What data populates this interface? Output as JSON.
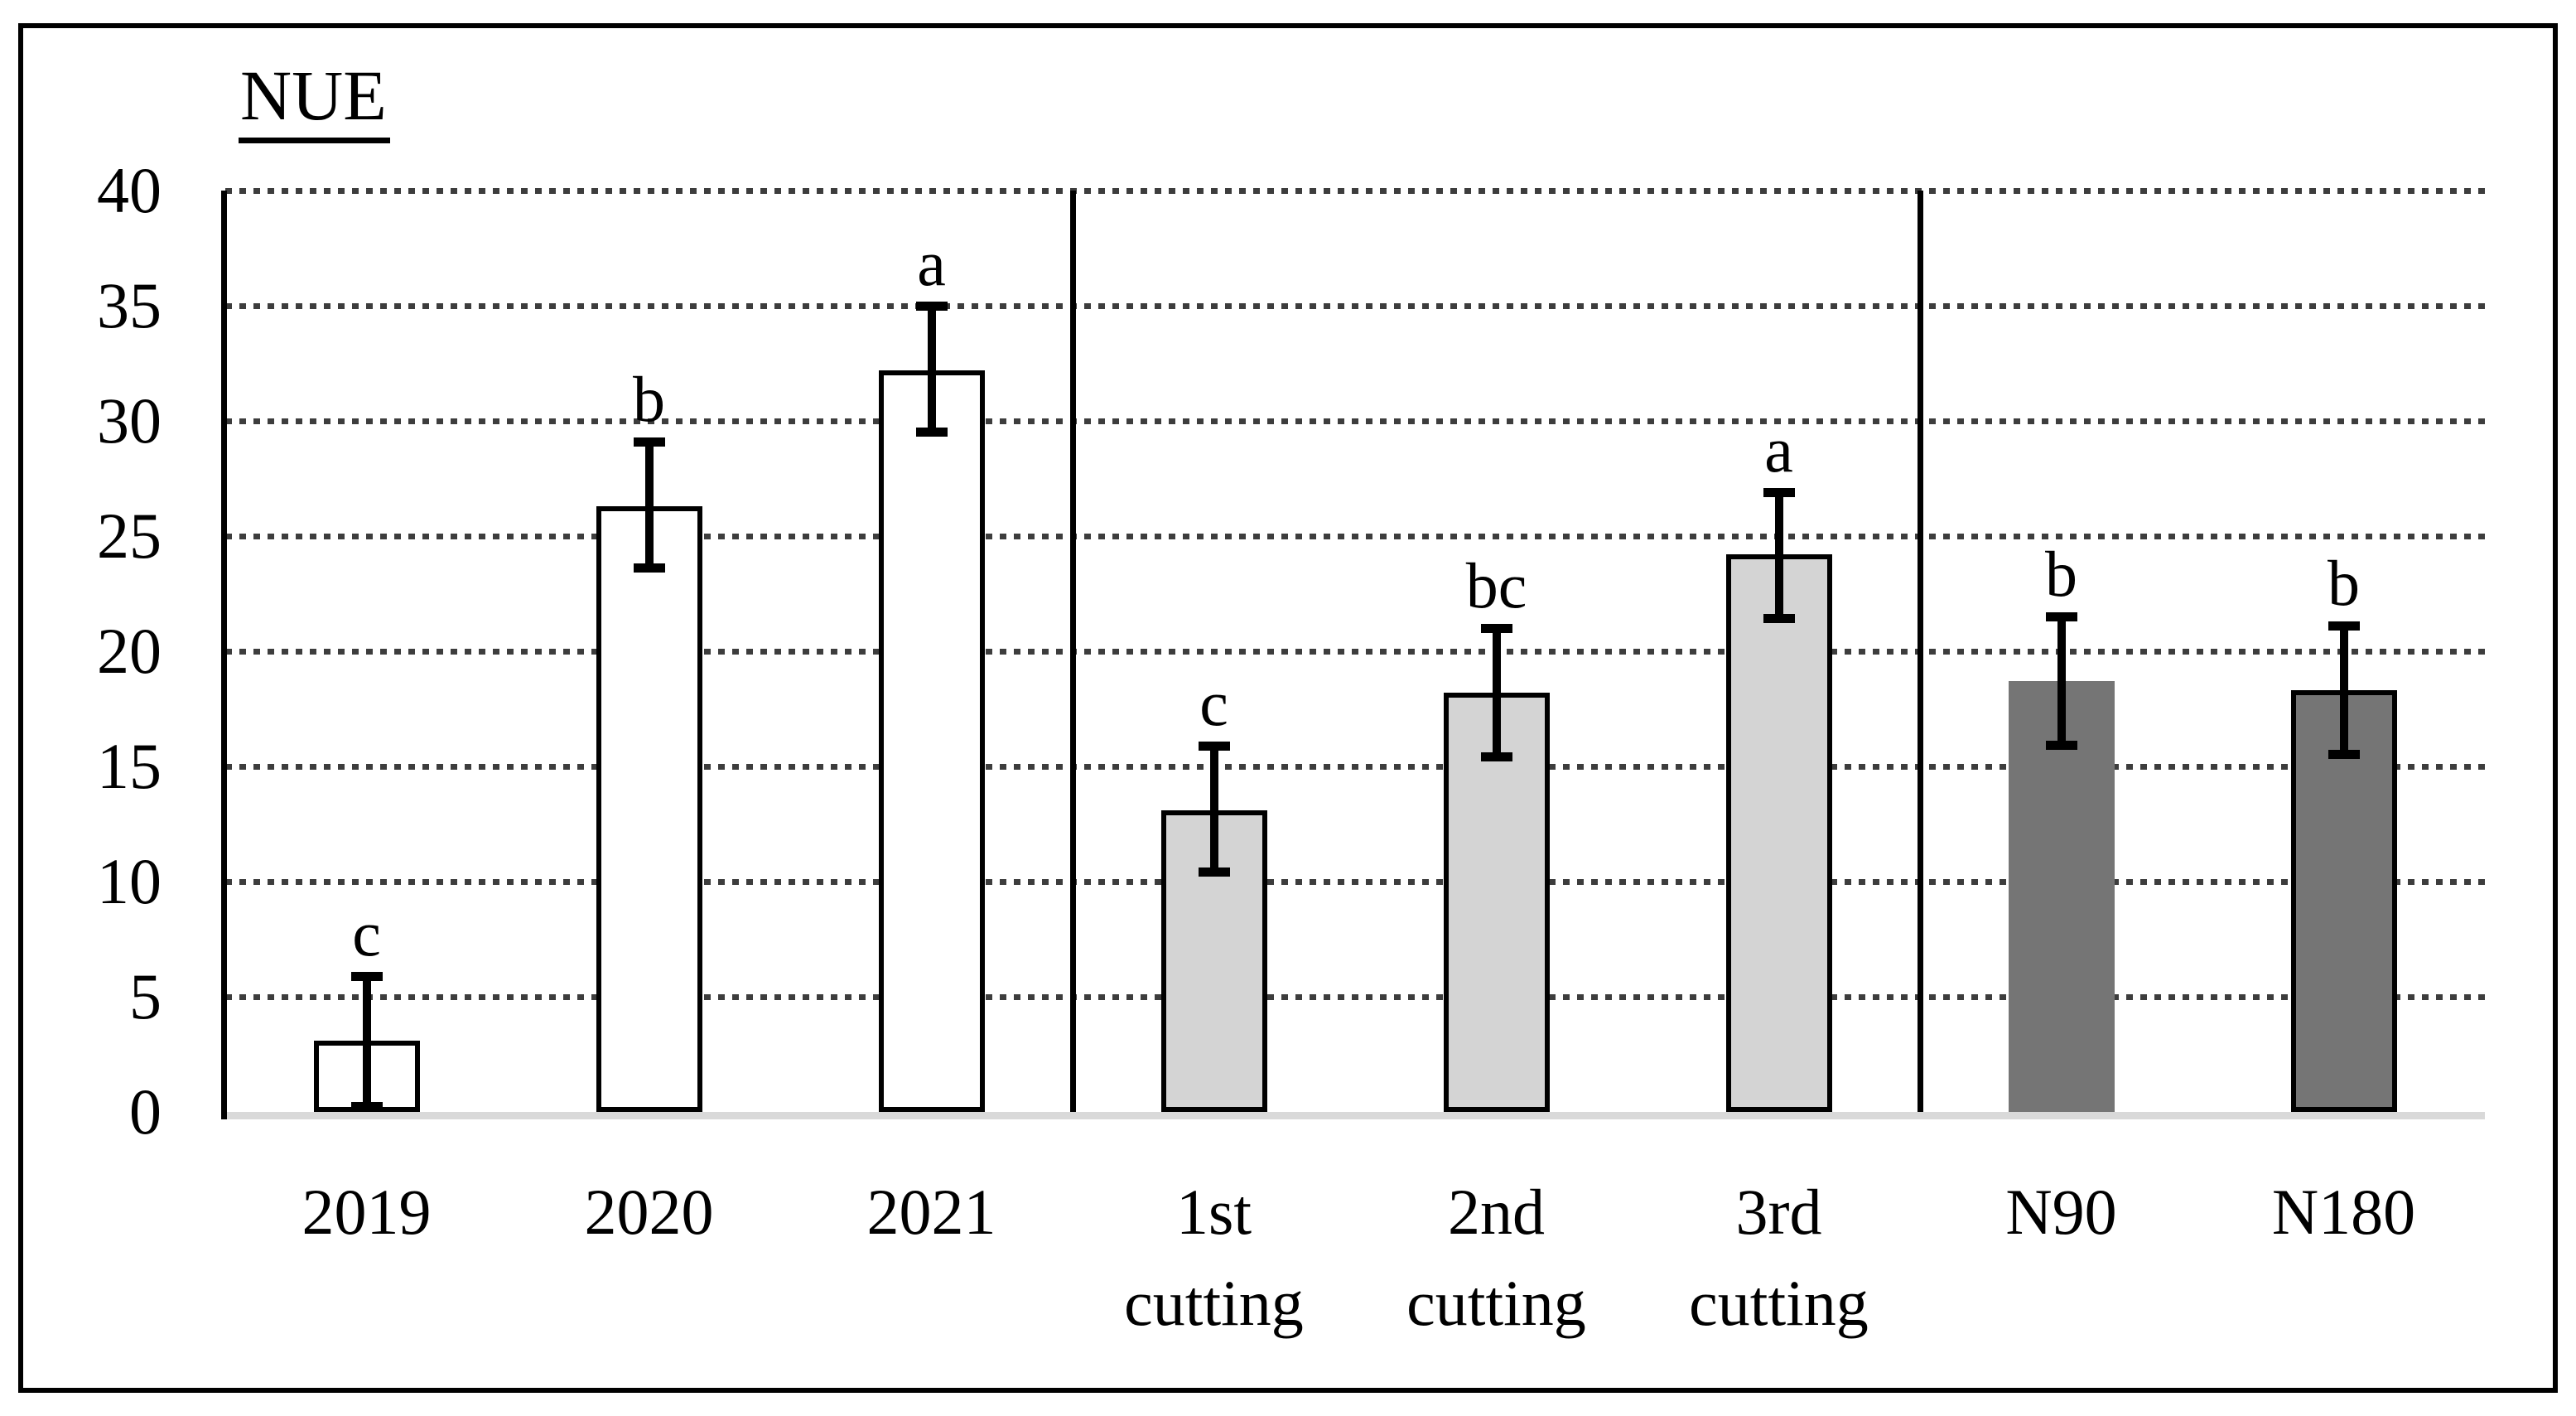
{
  "title": "NUE",
  "chart_data": {
    "type": "bar",
    "title": "NUE",
    "xlabel": "",
    "ylabel": "",
    "ylim": [
      0,
      40
    ],
    "yticks": [
      0,
      5,
      10,
      15,
      20,
      25,
      30,
      35,
      40
    ],
    "grid": "horizontal dotted gridlines at every 5 units",
    "legend_position": "none",
    "error_bars": true,
    "categories": [
      "2019",
      "2020",
      "2021",
      "1st cutting",
      "2nd cutting",
      "3rd cutting",
      "N90",
      "N180"
    ],
    "values": [
      3.1,
      26.3,
      32.2,
      13.1,
      18.2,
      24.2,
      18.7,
      18.3
    ],
    "bars": [
      {
        "category": "2019",
        "label_lines": [
          "2019"
        ],
        "value": 3.1,
        "err_low": 0.2,
        "err_high": 5.9,
        "sig_letter": "c",
        "fill": "#ffffff",
        "outlined": true
      },
      {
        "category": "2020",
        "label_lines": [
          "2020"
        ],
        "value": 26.3,
        "err_low": 23.6,
        "err_high": 29.1,
        "sig_letter": "b",
        "fill": "#ffffff",
        "outlined": true
      },
      {
        "category": "2021",
        "label_lines": [
          "2021"
        ],
        "value": 32.2,
        "err_low": 29.5,
        "err_high": 35.0,
        "sig_letter": "a",
        "fill": "#ffffff",
        "outlined": true
      },
      {
        "category": "1st cutting",
        "label_lines": [
          "1st",
          "cutting"
        ],
        "value": 13.1,
        "err_low": 10.4,
        "err_high": 15.9,
        "sig_letter": "c",
        "fill": "#d4d4d4",
        "outlined": true
      },
      {
        "category": "2nd cutting",
        "label_lines": [
          "2nd",
          "cutting"
        ],
        "value": 18.2,
        "err_low": 15.4,
        "err_high": 21.0,
        "sig_letter": "bc",
        "fill": "#d4d4d4",
        "outlined": true
      },
      {
        "category": "3rd cutting",
        "label_lines": [
          "3rd",
          "cutting"
        ],
        "value": 24.2,
        "err_low": 21.4,
        "err_high": 26.9,
        "sig_letter": "a",
        "fill": "#d4d4d4",
        "outlined": true
      },
      {
        "category": "N90",
        "label_lines": [
          "N90"
        ],
        "value": 18.7,
        "err_low": 15.9,
        "err_high": 21.5,
        "sig_letter": "b",
        "fill": "#757575",
        "outlined": false
      },
      {
        "category": "N180",
        "label_lines": [
          "N180"
        ],
        "value": 18.3,
        "err_low": 15.5,
        "err_high": 21.1,
        "sig_letter": "b",
        "fill": "#757575",
        "outlined": true
      }
    ],
    "group_separators_after_index": [
      2,
      5
    ],
    "colors": {
      "gridline": "#3d3d3d",
      "x_baseline": "#d9d9d9",
      "y_axis": "#000000",
      "bar_outline": "#000000",
      "white_bars": "#ffffff",
      "light_gray_bars": "#d4d4d4",
      "dark_gray_bars": "#757575"
    }
  }
}
